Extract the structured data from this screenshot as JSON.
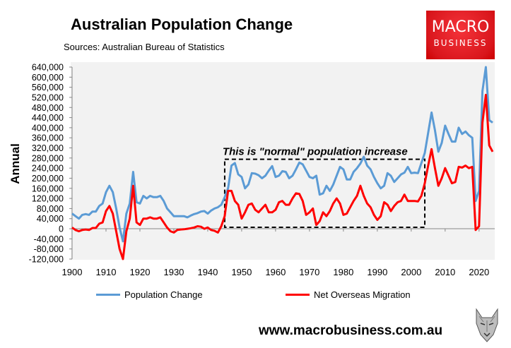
{
  "header": {
    "title": "Australian Population Change",
    "subtitle": "Sources: Australian Bureau of Statistics",
    "logo_line1": "MACRO",
    "logo_line2": "BUSINESS",
    "logo_color": "#e8151d"
  },
  "footer": {
    "url": "www.macrobusiness.com.au",
    "wolf_logo": "wolf-head-logo"
  },
  "chart_data": {
    "type": "line",
    "title": "Australian Population Change",
    "xlabel": "",
    "ylabel": "Annual",
    "xlim": [
      1900,
      2024
    ],
    "ylim": [
      -120000,
      640000
    ],
    "y_ticks": [
      "-120,000",
      "-80,000",
      "-40,000",
      "0",
      "40,000",
      "80,000",
      "120,000",
      "160,000",
      "200,000",
      "240,000",
      "280,000",
      "320,000",
      "360,000",
      "400,000",
      "440,000",
      "480,000",
      "520,000",
      "560,000",
      "600,000",
      "640,000"
    ],
    "x_ticks": [
      "1900",
      "1910",
      "1920",
      "1930",
      "1940",
      "1950",
      "1960",
      "1970",
      "1980",
      "1990",
      "2000",
      "2010",
      "2020"
    ],
    "grid": false,
    "legend_position": "bottom",
    "annotation": {
      "text": "This is \"normal\" population increase",
      "x_range": [
        1945,
        2004
      ],
      "y_range": [
        0,
        275000
      ]
    },
    "x": [
      1900,
      1901,
      1902,
      1903,
      1904,
      1905,
      1906,
      1907,
      1908,
      1909,
      1910,
      1911,
      1912,
      1913,
      1914,
      1915,
      1916,
      1917,
      1918,
      1919,
      1920,
      1921,
      1922,
      1923,
      1924,
      1925,
      1926,
      1927,
      1928,
      1929,
      1930,
      1931,
      1932,
      1933,
      1934,
      1935,
      1936,
      1937,
      1938,
      1939,
      1940,
      1941,
      1942,
      1943,
      1944,
      1945,
      1946,
      1947,
      1948,
      1949,
      1950,
      1951,
      1952,
      1953,
      1954,
      1955,
      1956,
      1957,
      1958,
      1959,
      1960,
      1961,
      1962,
      1963,
      1964,
      1965,
      1966,
      1967,
      1968,
      1969,
      1970,
      1971,
      1972,
      1973,
      1974,
      1975,
      1976,
      1977,
      1978,
      1979,
      1980,
      1981,
      1982,
      1983,
      1984,
      1985,
      1986,
      1987,
      1988,
      1989,
      1990,
      1991,
      1992,
      1993,
      1994,
      1995,
      1996,
      1997,
      1998,
      1999,
      2000,
      2001,
      2002,
      2003,
      2004,
      2005,
      2006,
      2007,
      2008,
      2009,
      2010,
      2011,
      2012,
      2013,
      2014,
      2015,
      2016,
      2017,
      2018,
      2019,
      2020,
      2021,
      2022,
      2023,
      2024
    ],
    "series": [
      {
        "name": "Population Change",
        "color": "#5b9bd5",
        "values": [
          60000,
          50000,
          40000,
          55000,
          58000,
          55000,
          68000,
          68000,
          90000,
          100000,
          145000,
          170000,
          145000,
          80000,
          5000,
          -50000,
          60000,
          100000,
          225000,
          105000,
          100000,
          130000,
          120000,
          130000,
          125000,
          125000,
          130000,
          110000,
          80000,
          65000,
          50000,
          50000,
          50000,
          50000,
          45000,
          52000,
          58000,
          62000,
          68000,
          70000,
          60000,
          72000,
          80000,
          85000,
          95000,
          125000,
          160000,
          250000,
          260000,
          215000,
          205000,
          160000,
          175000,
          220000,
          218000,
          212000,
          200000,
          210000,
          230000,
          248000,
          205000,
          210000,
          228000,
          225000,
          200000,
          210000,
          235000,
          262000,
          255000,
          230000,
          205000,
          200000,
          210000,
          135000,
          140000,
          170000,
          150000,
          175000,
          210000,
          245000,
          235000,
          195000,
          195000,
          225000,
          240000,
          258000,
          285000,
          250000,
          235000,
          205000,
          180000,
          160000,
          170000,
          220000,
          210000,
          185000,
          200000,
          215000,
          222000,
          245000,
          220000,
          222000,
          220000,
          260000,
          300000,
          380000,
          460000,
          390000,
          305000,
          340000,
          408000,
          375000,
          345000,
          345000,
          400000,
          375000,
          385000,
          370000,
          360000,
          110000,
          150000,
          545000,
          640000,
          430000,
          420000
        ]
      },
      {
        "name": "Net Overseas Migration",
        "color": "#ff0000",
        "values": [
          5000,
          -5000,
          -10000,
          -5000,
          -3000,
          -5000,
          3000,
          3000,
          20000,
          25000,
          70000,
          90000,
          60000,
          -10000,
          -80000,
          -120000,
          -10000,
          40000,
          170000,
          25000,
          15000,
          40000,
          40000,
          45000,
          40000,
          40000,
          45000,
          25000,
          5000,
          -10000,
          -15000,
          -5000,
          -3000,
          -2000,
          0,
          2000,
          5000,
          10000,
          8000,
          0,
          5000,
          -5000,
          -8000,
          -15000,
          10000,
          50000,
          150000,
          150000,
          110000,
          95000,
          40000,
          65000,
          95000,
          100000,
          75000,
          65000,
          80000,
          95000,
          65000,
          65000,
          75000,
          105000,
          110000,
          95000,
          95000,
          120000,
          140000,
          138000,
          110000,
          55000,
          65000,
          80000,
          15000,
          30000,
          65000,
          50000,
          70000,
          100000,
          120000,
          100000,
          55000,
          60000,
          85000,
          110000,
          130000,
          170000,
          130000,
          100000,
          85000,
          55000,
          35000,
          50000,
          105000,
          95000,
          70000,
          90000,
          105000,
          110000,
          135000,
          110000,
          110000,
          110000,
          108000,
          130000,
          180000,
          250000,
          315000,
          240000,
          170000,
          200000,
          240000,
          210000,
          180000,
          185000,
          245000,
          242000,
          250000,
          240000,
          245000,
          -5000,
          10000,
          420000,
          530000,
          330000,
          305000
        ]
      }
    ]
  }
}
